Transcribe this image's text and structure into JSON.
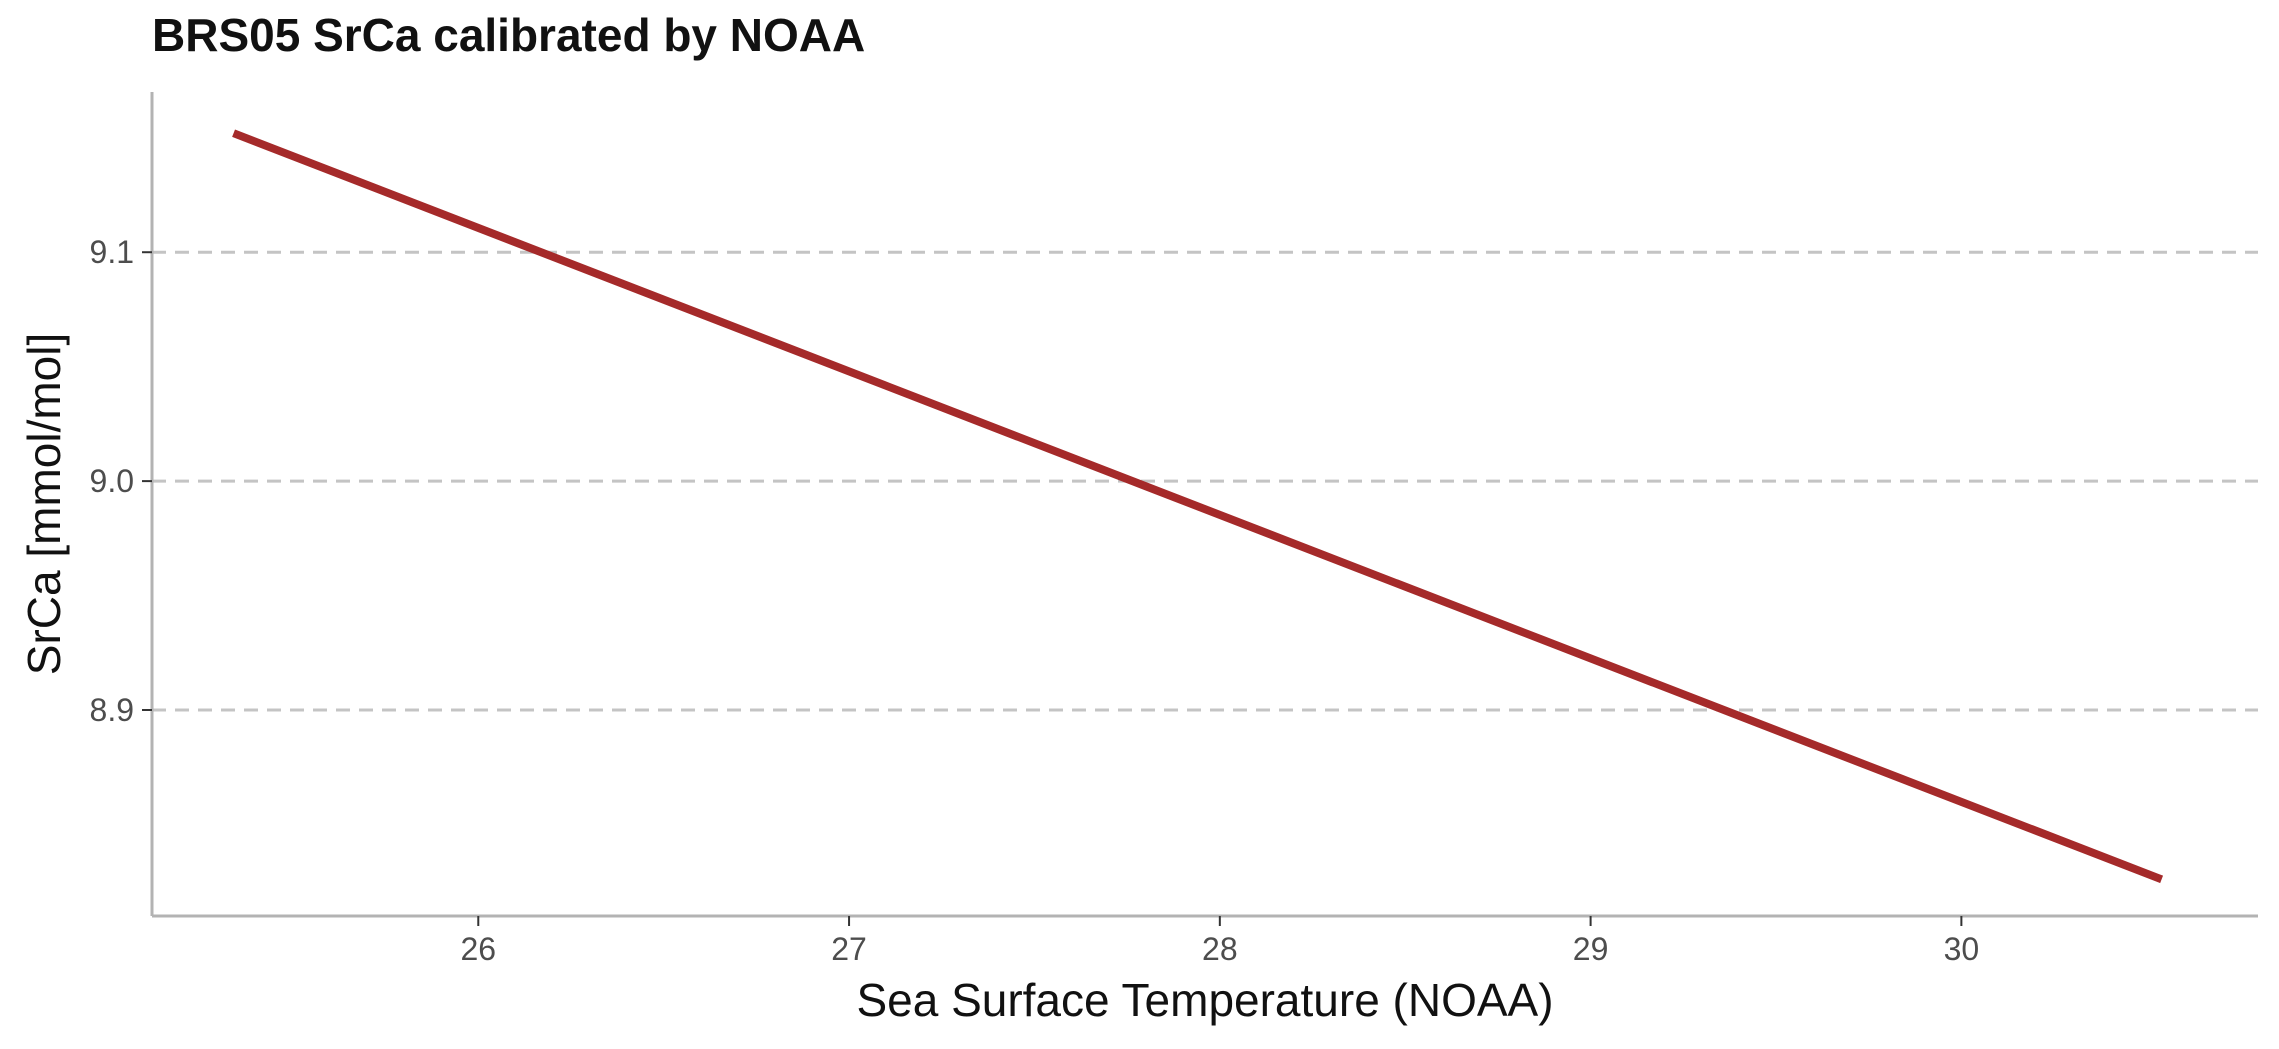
{
  "chart_data": {
    "type": "line",
    "title": "BRS05 SrCa calibrated by NOAA",
    "xlabel": "Sea Surface Temperature (NOAA)",
    "ylabel": "SrCa [mmol/mol]",
    "xlim": [
      25.12,
      30.8
    ],
    "ylim": [
      8.81,
      9.17
    ],
    "xticks": [
      26,
      27,
      28,
      29,
      30
    ],
    "xtick_labels": [
      "26",
      "27",
      "28",
      "29",
      "30"
    ],
    "yticks": [
      8.9,
      9.0,
      9.1
    ],
    "ytick_labels": [
      "8.9",
      "9.0",
      "9.1"
    ],
    "grid": {
      "major_y": true,
      "major_x": false,
      "style": "dashed"
    },
    "legend": "none",
    "series": [
      {
        "color": "#a52a2a",
        "x": [
          25.34,
          30.54
        ],
        "y": [
          9.152,
          8.826
        ]
      }
    ]
  }
}
